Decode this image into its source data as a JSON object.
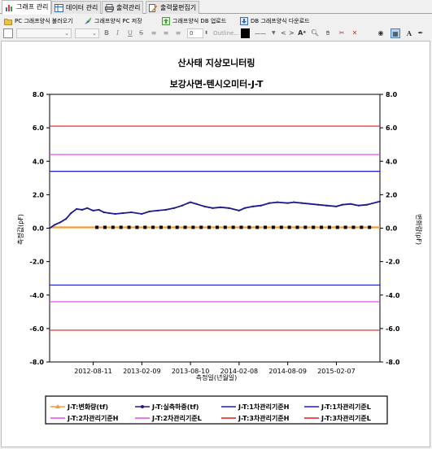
{
  "tabs": [
    {
      "label": "그래프 관리",
      "icon": "bar-chart-icon",
      "active": true
    },
    {
      "label": "데이터 관리",
      "icon": "table-icon"
    },
    {
      "label": "출력관리",
      "icon": "print-icon"
    },
    {
      "label": "출력물편집기",
      "icon": "edit-document-icon"
    }
  ],
  "toolbar": {
    "load_pc": "PC 그래프양식 불러오기",
    "save_pc": "그래프양식 PC 저장",
    "upload_db": "그래프양식 DB 업로드",
    "download_db": "DB 그래프양식 다운로드"
  },
  "format": {
    "bold": "B",
    "italic": "I",
    "underline": "U",
    "strike": "S",
    "size_value": "0",
    "outline_placeholder": "Outline...",
    "line_style": "——",
    "nav_prev": "<",
    "nav_next": ">",
    "text_icon": "A"
  },
  "colors": {
    "flow_line": "#f29c38",
    "load_line": "#1a1a8c",
    "level1": "#1a1ad9",
    "level2": "#e64de6",
    "level3": "#e61a1a"
  },
  "chart_data": {
    "type": "line",
    "title": "산사태 지상모니터링",
    "subtitle": "보강사면-텐시오미터-J-T",
    "xlabel": "측정일(년월일)",
    "ylabel_left": "측정값(pF)",
    "ylabel_right": "변화량(pF)",
    "ylim": [
      -8,
      8
    ],
    "yticks": [
      "8.0",
      "6.0",
      "4.0",
      "2.0",
      "0.0",
      "-2.0",
      "-4.0",
      "-6.0",
      "-8.0"
    ],
    "xticks": [
      "2012-08-11",
      "2013-02-09",
      "2013-08-10",
      "2014-02-08",
      "2014-08-09",
      "2015-02-07"
    ],
    "x_start": "2012-03-01",
    "x_end": "2015-07-20",
    "grid": false,
    "legend_position": "bottom",
    "series": [
      {
        "name": "J-T:변화량(tf)",
        "kind": "flat_markers",
        "value": 0.05
      },
      {
        "name": "J-T:실측하중(tf)",
        "kind": "measured",
        "points": [
          [
            "2012-03-01",
            0.0
          ],
          [
            "2012-03-20",
            0.2
          ],
          [
            "2012-04-10",
            0.35
          ],
          [
            "2012-05-01",
            0.55
          ],
          [
            "2012-05-20",
            0.9
          ],
          [
            "2012-06-10",
            1.15
          ],
          [
            "2012-07-01",
            1.1
          ],
          [
            "2012-07-20",
            1.2
          ],
          [
            "2012-08-11",
            1.05
          ],
          [
            "2012-09-01",
            1.1
          ],
          [
            "2012-09-20",
            0.95
          ],
          [
            "2012-10-10",
            0.9
          ],
          [
            "2012-11-01",
            0.85
          ],
          [
            "2012-12-01",
            0.9
          ],
          [
            "2013-01-01",
            0.95
          ],
          [
            "2013-02-09",
            0.85
          ],
          [
            "2013-03-10",
            1.0
          ],
          [
            "2013-04-10",
            1.05
          ],
          [
            "2013-05-10",
            1.1
          ],
          [
            "2013-06-10",
            1.2
          ],
          [
            "2013-07-10",
            1.35
          ],
          [
            "2013-08-01",
            1.5
          ],
          [
            "2013-08-10",
            1.55
          ],
          [
            "2013-09-01",
            1.45
          ],
          [
            "2013-10-01",
            1.3
          ],
          [
            "2013-11-01",
            1.2
          ],
          [
            "2013-12-01",
            1.25
          ],
          [
            "2014-01-01",
            1.2
          ],
          [
            "2014-02-08",
            1.05
          ],
          [
            "2014-03-01",
            1.2
          ],
          [
            "2014-04-01",
            1.3
          ],
          [
            "2014-05-01",
            1.35
          ],
          [
            "2014-06-01",
            1.5
          ],
          [
            "2014-07-01",
            1.55
          ],
          [
            "2014-08-09",
            1.5
          ],
          [
            "2014-09-01",
            1.55
          ],
          [
            "2014-10-01",
            1.5
          ],
          [
            "2014-11-01",
            1.45
          ],
          [
            "2014-12-01",
            1.4
          ],
          [
            "2015-01-01",
            1.35
          ],
          [
            "2015-02-07",
            1.3
          ],
          [
            "2015-03-01",
            1.4
          ],
          [
            "2015-04-01",
            1.45
          ],
          [
            "2015-05-01",
            1.35
          ],
          [
            "2015-06-01",
            1.4
          ],
          [
            "2015-07-20",
            1.6
          ]
        ]
      },
      {
        "name": "J-T:1차관리기준H",
        "kind": "hline",
        "value": 3.4
      },
      {
        "name": "J-T:1차관리기준L",
        "kind": "hline",
        "value": -3.4
      },
      {
        "name": "J-T:2차관리기준H",
        "kind": "hline",
        "value": 4.4
      },
      {
        "name": "J-T:2차관리기준L",
        "kind": "hline",
        "value": -4.4
      },
      {
        "name": "J-T:3차관리기준H",
        "kind": "hline",
        "value": 6.1
      },
      {
        "name": "J-T:3차관리기준L",
        "kind": "hline",
        "value": -6.1
      }
    ]
  }
}
